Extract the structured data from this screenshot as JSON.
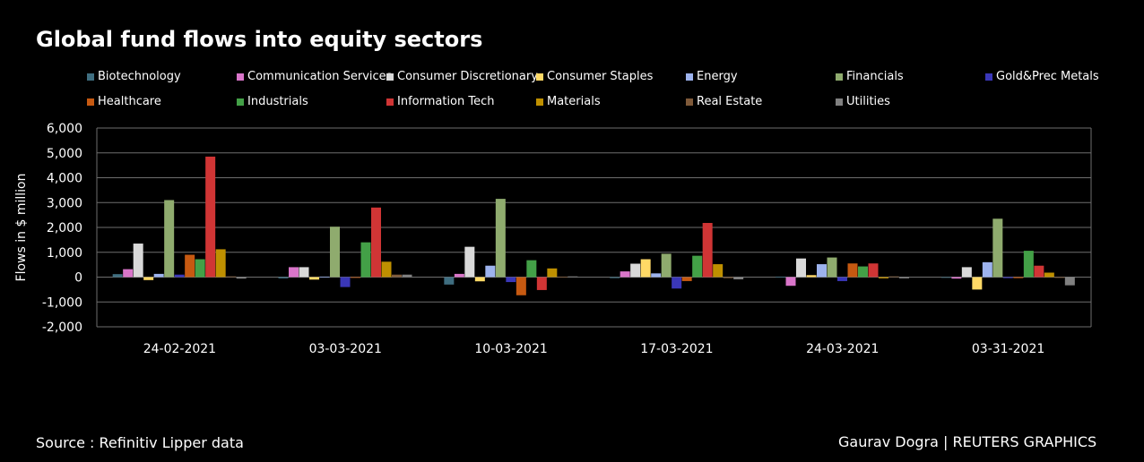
{
  "chart_data": {
    "type": "bar",
    "title": "Global fund flows into equity sectors",
    "xlabel": "",
    "ylabel": "Flows in $ million",
    "ylim": [
      -2000,
      6000
    ],
    "yticks": [
      6000,
      5000,
      4000,
      3000,
      2000,
      1000,
      0,
      -1000,
      -2000
    ],
    "ytick_labels": [
      "6,000",
      "5,000",
      "4,000",
      "3,000",
      "2,000",
      "1,000",
      "0",
      "-1,000",
      "-2,000"
    ],
    "grid": true,
    "legend_position": "top",
    "categories": [
      "24-02-2021",
      "03-03-2021",
      "10-03-2021",
      "17-03-2021",
      "24-03-2021",
      "03-31-2021"
    ],
    "series": [
      {
        "name": "Biotechnology",
        "color": "#3f6e80",
        "values": [
          120,
          -50,
          -300,
          -40,
          20,
          -20
        ]
      },
      {
        "name": "Communication Services",
        "color": "#d975c9",
        "values": [
          320,
          400,
          130,
          230,
          -350,
          -60
        ]
      },
      {
        "name": "Consumer Discretionary",
        "color": "#d9d9d9",
        "values": [
          1350,
          400,
          1220,
          540,
          750,
          400
        ]
      },
      {
        "name": "Consumer Staples",
        "color": "#ffd966",
        "values": [
          -120,
          -100,
          -170,
          720,
          80,
          -500
        ]
      },
      {
        "name": "Energy",
        "color": "#9db3ee",
        "values": [
          130,
          20,
          460,
          150,
          520,
          600
        ]
      },
      {
        "name": "Financials",
        "color": "#8fab6e",
        "values": [
          3100,
          2030,
          3150,
          940,
          790,
          2350
        ]
      },
      {
        "name": "Gold&Prec Metals",
        "color": "#3a37b8",
        "values": [
          100,
          -400,
          -200,
          -460,
          -160,
          -40
        ]
      },
      {
        "name": "Healthcare",
        "color": "#c65911",
        "values": [
          900,
          -30,
          -730,
          -160,
          550,
          -40
        ]
      },
      {
        "name": "Industrials",
        "color": "#43a047",
        "values": [
          720,
          1400,
          680,
          860,
          430,
          1060
        ]
      },
      {
        "name": "Information Tech",
        "color": "#d03535",
        "values": [
          4850,
          2800,
          -520,
          2180,
          550,
          460
        ]
      },
      {
        "name": "Materials",
        "color": "#bf9000",
        "values": [
          1120,
          620,
          350,
          520,
          -50,
          180
        ]
      },
      {
        "name": "Real Estate",
        "color": "#7f5a3a",
        "values": [
          30,
          100,
          20,
          -40,
          30,
          -30
        ]
      },
      {
        "name": "Utilities",
        "color": "#808080",
        "values": [
          -60,
          100,
          30,
          -90,
          -50,
          -330
        ]
      }
    ]
  },
  "footer": {
    "source": "Source : Refinitiv Lipper data",
    "credit": "Gaurav Dogra | REUTERS GRAPHICS"
  }
}
